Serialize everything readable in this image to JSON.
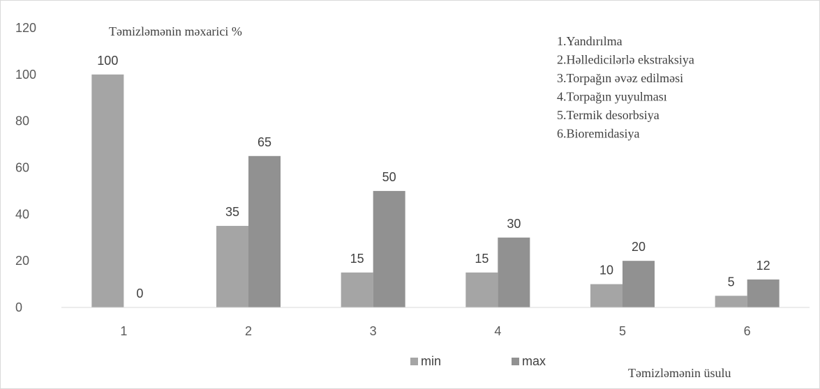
{
  "chart_data": {
    "type": "bar",
    "title": "Təmizləmənin məxarici %",
    "xlabel": "Təmizləmənin üsulu",
    "ylabel": "",
    "categories": [
      "1",
      "2",
      "3",
      "4",
      "5",
      "6"
    ],
    "ylim": [
      0,
      120
    ],
    "yticks": [
      0,
      20,
      40,
      60,
      80,
      100,
      120
    ],
    "grid": false,
    "legend_position": "bottom",
    "series": [
      {
        "name": "min",
        "values": [
          100,
          35,
          15,
          15,
          10,
          5
        ],
        "color": "#a5a5a5"
      },
      {
        "name": "max",
        "values": [
          0,
          65,
          50,
          30,
          20,
          12
        ],
        "color": "#919191"
      }
    ],
    "annotation_lines": [
      "1.Yandırılma",
      "2.Həlledicilərlə ekstraksiya",
      "3.Torpağın əvəz edilməsi",
      "4.Torpağın  yuyulması",
      "5.Termik desorbsiya",
      "6.Bioremidasiya"
    ]
  }
}
